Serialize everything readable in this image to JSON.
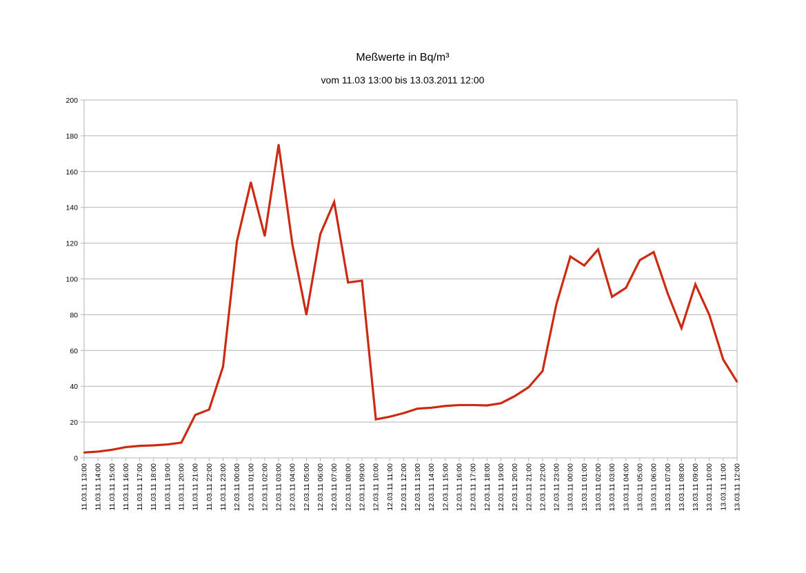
{
  "chart_data": {
    "type": "line",
    "title": "Meßwerte in Bq/m³",
    "subtitle": "vom 11.03 13:00 bis 13.03.2011 12:00",
    "xlabel": "",
    "ylabel": "",
    "ylim": [
      0,
      200
    ],
    "yticks": [
      0,
      20,
      40,
      60,
      80,
      100,
      120,
      140,
      160,
      180,
      200
    ],
    "grid": true,
    "legend": "none",
    "line_color": "#cc2a12",
    "grid_color": "#b3b3b3",
    "categories": [
      "11.03.11 13:00",
      "11.03.11 14:00",
      "11.03.11 15:00",
      "11.03.11 16:00",
      "11.03.11 17:00",
      "11.03.11 18:00",
      "11.03.11 19:00",
      "11.03.11 20:00",
      "11.03.11 21:00",
      "11.03.11 22:00",
      "11.03.11 23:00",
      "12.03.11 00:00",
      "12.03.11 01:00",
      "12.03.11 02:00",
      "12.03.11 03:00",
      "12.03.11 04:00",
      "12.03.11 05:00",
      "12.03.11 06:00",
      "12.03.11 07:00",
      "12.03.11 08:00",
      "12.03.11 09:00",
      "12.03.11 10:00",
      "12.03.11 11:00",
      "12.03.11 12:00",
      "12.03.11 13:00",
      "12.03.11 14:00",
      "12.03.11 15:00",
      "12.03.11 16:00",
      "12.03.11 17:00",
      "12.03.11 18:00",
      "12.03.11 19:00",
      "12.03.11 20:00",
      "12.03.11 21:00",
      "12.03.11 22:00",
      "12.03.11 23:00",
      "13.03.11 00:00",
      "13.03.11 01:00",
      "13.03.11 02:00",
      "13.03.11 03:00",
      "13.03.11 04:00",
      "13.03.11 05:00",
      "13.03.11 06:00",
      "13.03.11 07:00",
      "13.03.11 08:00",
      "13.03.11 09:00",
      "13.03.11 10:00",
      "13.03.11 11:00",
      "13.03.11 12:00"
    ],
    "series": [
      {
        "values": [
          3,
          3.5,
          4.5,
          6,
          6.7,
          7,
          7.5,
          8.5,
          24,
          27,
          51,
          121,
          154,
          124,
          175,
          119,
          80,
          125,
          143,
          98,
          99,
          21.5,
          23,
          25,
          27.5,
          28,
          29,
          29.5,
          29.5,
          29.3,
          30.5,
          34.5,
          39.5,
          48.5,
          86,
          112.5,
          107.5,
          116.5,
          90,
          95,
          110.5,
          115,
          92,
          72.5,
          97,
          80,
          55,
          42.5
        ]
      }
    ]
  }
}
